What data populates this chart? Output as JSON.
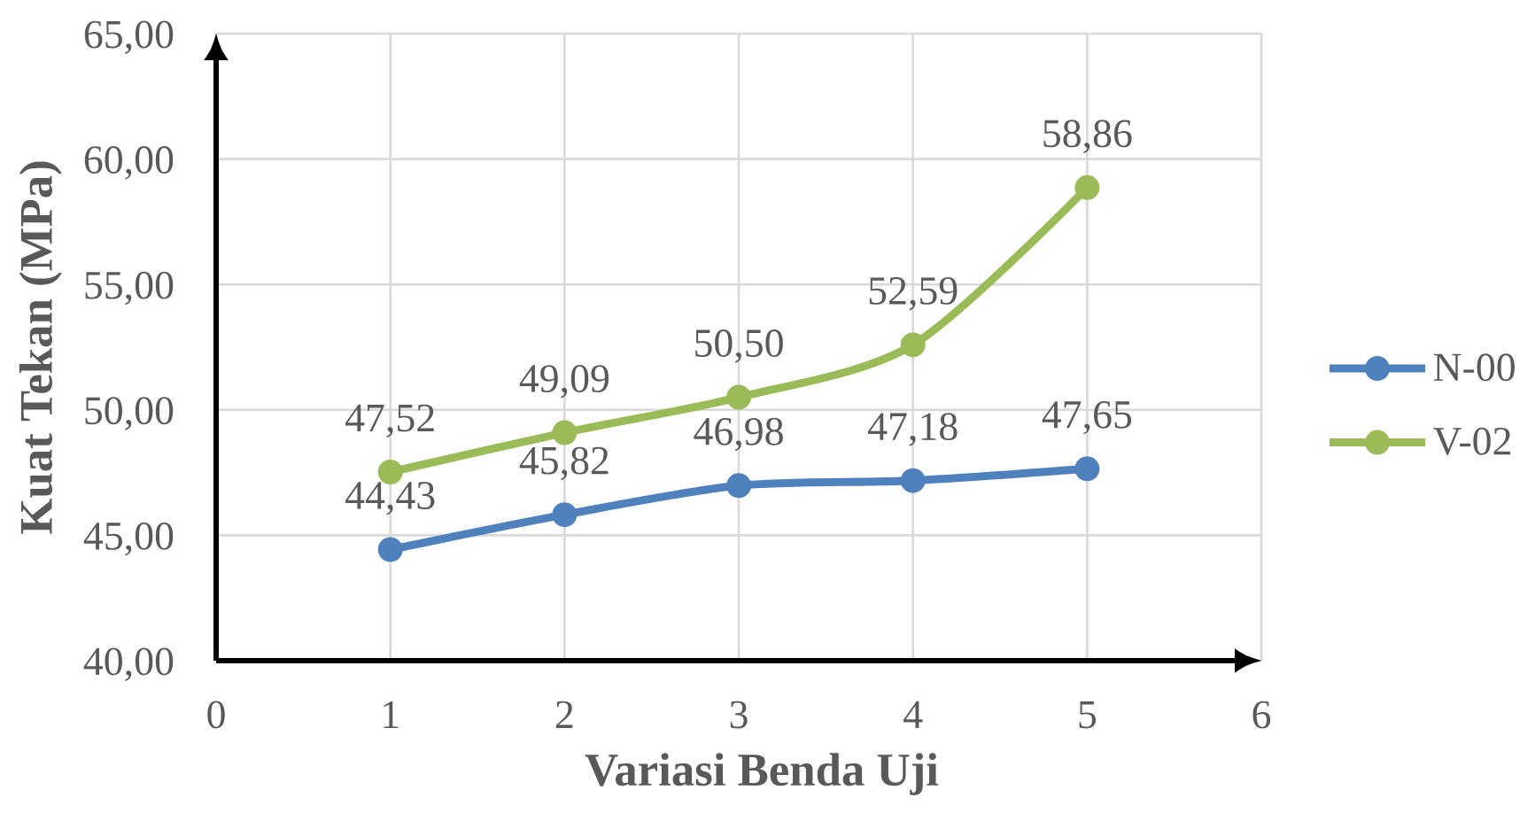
{
  "chart_data": {
    "type": "line",
    "xlabel": "Variasi Benda Uji",
    "ylabel": "Kuat Tekan (MPa)",
    "x": [
      1,
      2,
      3,
      4,
      5
    ],
    "xlim": [
      0,
      6
    ],
    "xticks": [
      0,
      1,
      2,
      3,
      4,
      5,
      6
    ],
    "ylim": [
      40,
      65
    ],
    "yticks": [
      {
        "value": 40,
        "label": "40,00"
      },
      {
        "value": 45,
        "label": "45,00"
      },
      {
        "value": 50,
        "label": "50,00"
      },
      {
        "value": 55,
        "label": "55,00"
      },
      {
        "value": 60,
        "label": "60,00"
      },
      {
        "value": 65,
        "label": "65,00"
      }
    ],
    "series": [
      {
        "name": "N-00",
        "color": "#4f81bd",
        "values": [
          44.43,
          45.82,
          46.98,
          47.18,
          47.65
        ],
        "value_labels": [
          "44,43",
          "45,82",
          "46,98",
          "47,18",
          "47,65"
        ]
      },
      {
        "name": "V-02",
        "color": "#9bbb59",
        "values": [
          47.52,
          49.09,
          50.5,
          52.59,
          58.86
        ],
        "value_labels": [
          "47,52",
          "49,09",
          "50,50",
          "52,59",
          "58,86"
        ]
      }
    ],
    "grid": true,
    "legend": "right",
    "marker": "circle",
    "line_style": "solid"
  }
}
